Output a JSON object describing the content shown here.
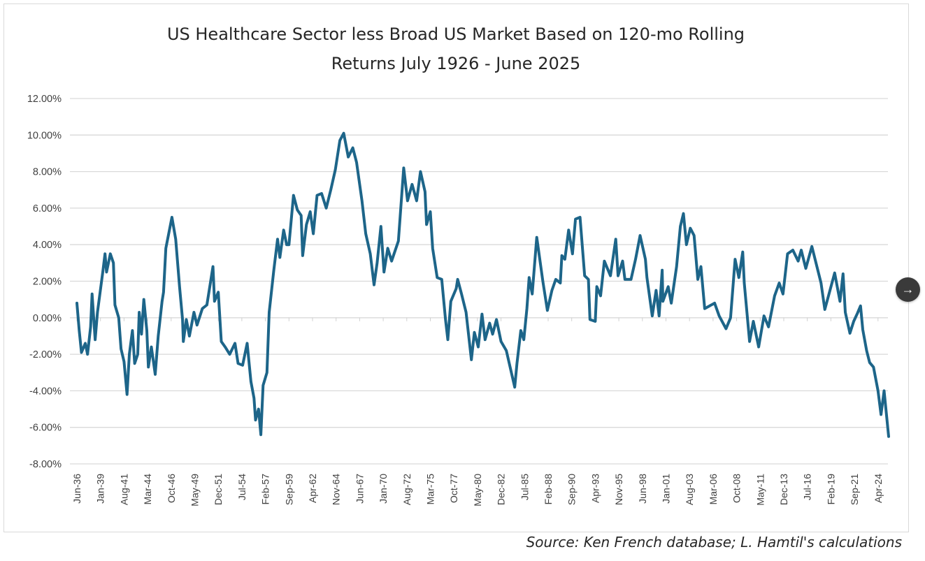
{
  "chart_data": {
    "type": "line",
    "title_lines": [
      "US Healthcare Sector less Broad US Market Based on 120-mo Rolling",
      "Returns July 1926 - June 2025"
    ],
    "xlabel": "",
    "ylabel": "",
    "x_unit": "months since Jun-36",
    "x_range": [
      0,
      1068
    ],
    "ylim": [
      -8,
      12
    ],
    "ytick_values": [
      12,
      10,
      8,
      6,
      4,
      2,
      0,
      -2,
      -4,
      -6,
      -8
    ],
    "ytick_labels": [
      "12.00%",
      "10.00%",
      "8.00%",
      "6.00%",
      "4.00%",
      "2.00%",
      "0.00%",
      "-2.00%",
      "-4.00%",
      "-6.00%",
      "-8.00%"
    ],
    "xtick_step_months": 31,
    "xtick_labels": [
      "Jun-36",
      "Jan-39",
      "Aug-41",
      "Mar-44",
      "Oct-46",
      "May-49",
      "Dec-51",
      "Jul-54",
      "Feb-57",
      "Sep-59",
      "Apr-62",
      "Nov-64",
      "Jun-67",
      "Jan-70",
      "Aug-72",
      "Mar-75",
      "Oct-77",
      "May-80",
      "Dec-82",
      "Jul-85",
      "Feb-88",
      "Sep-90",
      "Apr-93",
      "Nov-95",
      "Jun-98",
      "Jan-01",
      "Aug-03",
      "Mar-06",
      "Oct-08",
      "May-11",
      "Dec-13",
      "Jul-16",
      "Feb-19",
      "Sep-21",
      "Apr-24"
    ],
    "grid": true,
    "legend": "none",
    "series": [
      {
        "name": "Healthcare less Market (120-mo rolling)",
        "color": "#1d6589",
        "points": [
          [
            0,
            0.8
          ],
          [
            3,
            -0.7
          ],
          [
            6,
            -1.9
          ],
          [
            11,
            -1.4
          ],
          [
            14,
            -2.0
          ],
          [
            18,
            -0.5
          ],
          [
            20,
            1.3
          ],
          [
            24,
            -1.2
          ],
          [
            27,
            0.3
          ],
          [
            34,
            2.5
          ],
          [
            37,
            3.5
          ],
          [
            39,
            2.5
          ],
          [
            44,
            3.5
          ],
          [
            48,
            3.0
          ],
          [
            50,
            0.7
          ],
          [
            55,
            0.0
          ],
          [
            58,
            -1.7
          ],
          [
            62,
            -2.4
          ],
          [
            66,
            -4.2
          ],
          [
            69,
            -2.0
          ],
          [
            73,
            -0.7
          ],
          [
            76,
            -2.5
          ],
          [
            80,
            -2.0
          ],
          [
            82,
            0.3
          ],
          [
            85,
            -0.9
          ],
          [
            88,
            1.0
          ],
          [
            92,
            -0.7
          ],
          [
            94,
            -2.7
          ],
          [
            98,
            -1.6
          ],
          [
            103,
            -3.1
          ],
          [
            107,
            -1.0
          ],
          [
            112,
            0.9
          ],
          [
            114,
            1.4
          ],
          [
            117,
            3.8
          ],
          [
            125,
            5.5
          ],
          [
            130,
            4.3
          ],
          [
            135,
            1.7
          ],
          [
            139,
            -0.1
          ],
          [
            140,
            -1.3
          ],
          [
            144,
            -0.1
          ],
          [
            148,
            -1.0
          ],
          [
            154,
            0.3
          ],
          [
            158,
            -0.4
          ],
          [
            165,
            0.5
          ],
          [
            171,
            0.7
          ],
          [
            176,
            2.0
          ],
          [
            179,
            2.8
          ],
          [
            181,
            0.9
          ],
          [
            186,
            1.4
          ],
          [
            190,
            -1.3
          ],
          [
            195,
            -1.6
          ],
          [
            201,
            -2.0
          ],
          [
            208,
            -1.4
          ],
          [
            212,
            -2.5
          ],
          [
            218,
            -2.6
          ],
          [
            224,
            -1.4
          ],
          [
            229,
            -3.5
          ],
          [
            233,
            -4.4
          ],
          [
            235,
            -5.6
          ],
          [
            239,
            -5.0
          ],
          [
            242,
            -6.4
          ],
          [
            245,
            -3.7
          ],
          [
            250,
            -3.0
          ],
          [
            253,
            0.3
          ],
          [
            259,
            2.6
          ],
          [
            264,
            4.3
          ],
          [
            267,
            3.3
          ],
          [
            272,
            4.8
          ],
          [
            276,
            4.0
          ],
          [
            279,
            4.0
          ],
          [
            285,
            6.7
          ],
          [
            290,
            5.9
          ],
          [
            295,
            5.6
          ],
          [
            297,
            3.4
          ],
          [
            302,
            5.1
          ],
          [
            307,
            5.8
          ],
          [
            311,
            4.6
          ],
          [
            316,
            6.7
          ],
          [
            322,
            6.8
          ],
          [
            328,
            6.0
          ],
          [
            334,
            7.0
          ],
          [
            340,
            8.1
          ],
          [
            346,
            9.7
          ],
          [
            351,
            10.1
          ],
          [
            357,
            8.8
          ],
          [
            363,
            9.3
          ],
          [
            368,
            8.5
          ],
          [
            375,
            6.4
          ],
          [
            380,
            4.6
          ],
          [
            386,
            3.5
          ],
          [
            391,
            1.8
          ],
          [
            395,
            3.0
          ],
          [
            400,
            5.0
          ],
          [
            404,
            2.5
          ],
          [
            409,
            3.8
          ],
          [
            414,
            3.1
          ],
          [
            423,
            4.2
          ],
          [
            430,
            8.2
          ],
          [
            435,
            6.4
          ],
          [
            441,
            7.3
          ],
          [
            447,
            6.4
          ],
          [
            452,
            8.0
          ],
          [
            458,
            6.9
          ],
          [
            460,
            5.1
          ],
          [
            465,
            5.8
          ],
          [
            468,
            3.8
          ],
          [
            474,
            2.2
          ],
          [
            480,
            2.1
          ],
          [
            485,
            -0.1
          ],
          [
            488,
            -1.2
          ],
          [
            492,
            0.9
          ],
          [
            499,
            1.6
          ],
          [
            501,
            2.1
          ],
          [
            506,
            1.3
          ],
          [
            512,
            0.3
          ],
          [
            519,
            -2.3
          ],
          [
            523,
            -0.8
          ],
          [
            528,
            -1.6
          ],
          [
            533,
            0.2
          ],
          [
            537,
            -1.2
          ],
          [
            543,
            -0.3
          ],
          [
            547,
            -0.9
          ],
          [
            552,
            -0.1
          ],
          [
            558,
            -1.3
          ],
          [
            565,
            -1.8
          ],
          [
            570,
            -2.7
          ],
          [
            576,
            -3.8
          ],
          [
            579,
            -2.5
          ],
          [
            584,
            -0.7
          ],
          [
            588,
            -1.2
          ],
          [
            592,
            0.5
          ],
          [
            595,
            2.2
          ],
          [
            599,
            1.3
          ],
          [
            605,
            4.4
          ],
          [
            613,
            2.0
          ],
          [
            619,
            0.4
          ],
          [
            625,
            1.5
          ],
          [
            630,
            2.1
          ],
          [
            636,
            1.9
          ],
          [
            638,
            3.4
          ],
          [
            642,
            3.2
          ],
          [
            647,
            4.8
          ],
          [
            652,
            3.5
          ],
          [
            656,
            5.4
          ],
          [
            662,
            5.5
          ],
          [
            668,
            2.3
          ],
          [
            673,
            2.1
          ],
          [
            675,
            -0.1
          ],
          [
            682,
            -0.2
          ],
          [
            684,
            1.7
          ],
          [
            689,
            1.2
          ],
          [
            694,
            3.1
          ],
          [
            702,
            2.3
          ],
          [
            709,
            4.3
          ],
          [
            712,
            2.3
          ],
          [
            718,
            3.1
          ],
          [
            721,
            2.1
          ],
          [
            729,
            2.1
          ],
          [
            735,
            3.2
          ],
          [
            741,
            4.5
          ],
          [
            748,
            3.2
          ],
          [
            750,
            2.2
          ],
          [
            757,
            0.1
          ],
          [
            762,
            1.5
          ],
          [
            766,
            0.1
          ],
          [
            770,
            2.6
          ],
          [
            771,
            0.9
          ],
          [
            778,
            1.7
          ],
          [
            782,
            0.8
          ],
          [
            789,
            2.8
          ],
          [
            794,
            5.0
          ],
          [
            798,
            5.7
          ],
          [
            802,
            4.0
          ],
          [
            807,
            4.9
          ],
          [
            812,
            4.5
          ],
          [
            817,
            2.1
          ],
          [
            821,
            2.8
          ],
          [
            826,
            0.5
          ],
          [
            839,
            0.8
          ],
          [
            845,
            0.1
          ],
          [
            854,
            -0.6
          ],
          [
            860,
            0.0
          ],
          [
            866,
            3.2
          ],
          [
            871,
            2.2
          ],
          [
            876,
            3.6
          ],
          [
            878,
            1.9
          ],
          [
            885,
            -1.3
          ],
          [
            890,
            -0.2
          ],
          [
            897,
            -1.6
          ],
          [
            904,
            0.1
          ],
          [
            910,
            -0.5
          ],
          [
            918,
            1.2
          ],
          [
            924,
            1.9
          ],
          [
            929,
            1.3
          ],
          [
            935,
            3.5
          ],
          [
            942,
            3.7
          ],
          [
            949,
            3.1
          ],
          [
            953,
            3.7
          ],
          [
            959,
            2.7
          ],
          [
            967,
            3.9
          ],
          [
            979,
            1.9
          ],
          [
            984,
            0.45
          ],
          [
            997,
            2.45
          ],
          [
            1004,
            0.9
          ],
          [
            1008,
            2.4
          ],
          [
            1011,
            0.3
          ],
          [
            1017,
            -0.85
          ],
          [
            1022,
            -0.2
          ],
          [
            1027,
            0.25
          ],
          [
            1031,
            0.65
          ],
          [
            1034,
            -0.65
          ],
          [
            1039,
            -1.8
          ],
          [
            1043,
            -2.45
          ],
          [
            1048,
            -2.7
          ],
          [
            1054,
            -4.0
          ],
          [
            1058,
            -5.3
          ],
          [
            1062,
            -4.0
          ],
          [
            1068,
            -6.5
          ]
        ]
      }
    ]
  },
  "source_note": "Source:  Ken French database; L. Hamtil's calculations",
  "nav": {
    "next_icon": "→"
  }
}
